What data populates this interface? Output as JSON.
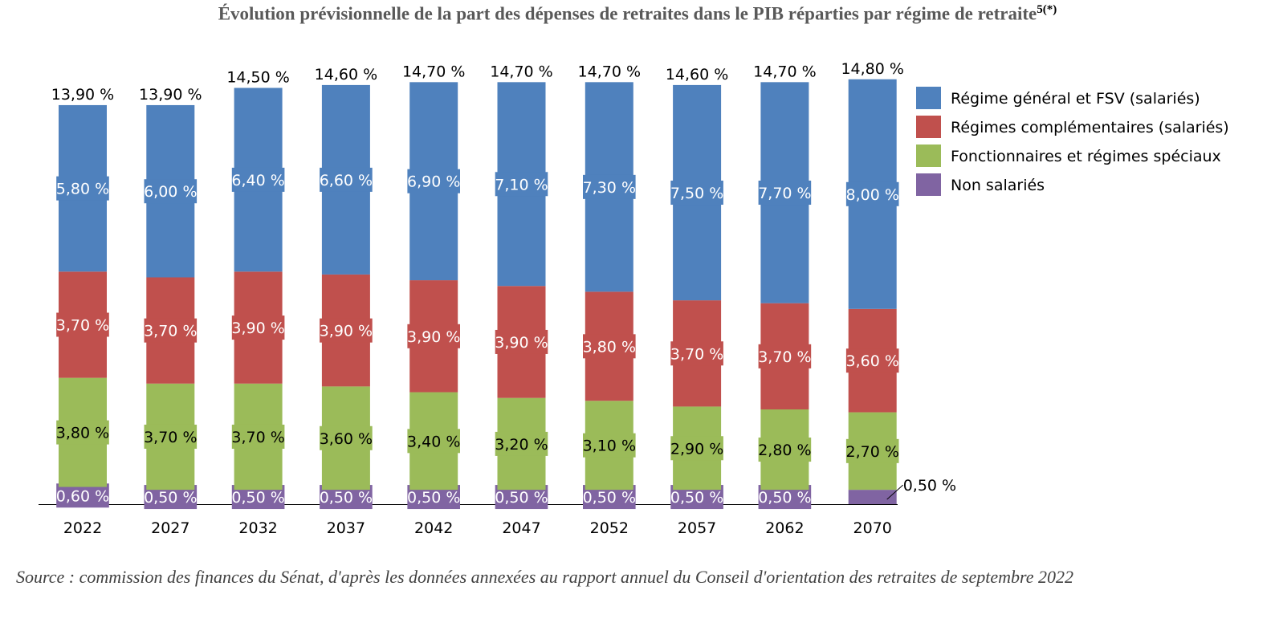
{
  "chart_data": {
    "type": "bar",
    "stacked": true,
    "title": "Évolution prévisionnelle de la part des dépenses de retraites dans le PIB réparties par régime de retraite",
    "title_note": "5(*)",
    "categories": [
      "2022",
      "2027",
      "2032",
      "2037",
      "2042",
      "2047",
      "2052",
      "2057",
      "2062",
      "2070"
    ],
    "totals": [
      13.9,
      13.9,
      14.5,
      14.6,
      14.7,
      14.7,
      14.7,
      14.6,
      14.7,
      14.8
    ],
    "series": [
      {
        "name": "Non salariés",
        "color": "#8064a2",
        "values": [
          0.6,
          0.5,
          0.5,
          0.5,
          0.5,
          0.5,
          0.5,
          0.5,
          0.5,
          0.5
        ]
      },
      {
        "name": "Fonctionnaires et régimes spéciaux",
        "color": "#9bbb59",
        "values": [
          3.8,
          3.7,
          3.7,
          3.6,
          3.4,
          3.2,
          3.1,
          2.9,
          2.8,
          2.7
        ]
      },
      {
        "name": "Régimes complémentaires (salariés)",
        "color": "#c0504d",
        "values": [
          3.7,
          3.7,
          3.9,
          3.9,
          3.9,
          3.9,
          3.8,
          3.7,
          3.7,
          3.6
        ]
      },
      {
        "name": "Régime général et FSV (salariés)",
        "color": "#4f81bd",
        "values": [
          5.8,
          6.0,
          6.4,
          6.6,
          6.9,
          7.1,
          7.3,
          7.5,
          7.7,
          8.0
        ]
      }
    ],
    "value_format": "%",
    "legend_order": [
      "Régime général et FSV (salariés)",
      "Régimes complémentaires (salariés)",
      "Fonctionnaires et régimes spéciaux",
      "Non salariés"
    ],
    "legend_position": "right",
    "grid": false,
    "xlabel": "",
    "ylabel": ""
  },
  "source": "Source : commission des finances du Sénat, d'après les données annexées au rapport annuel du Conseil d'orientation des retraites de septembre 2022"
}
